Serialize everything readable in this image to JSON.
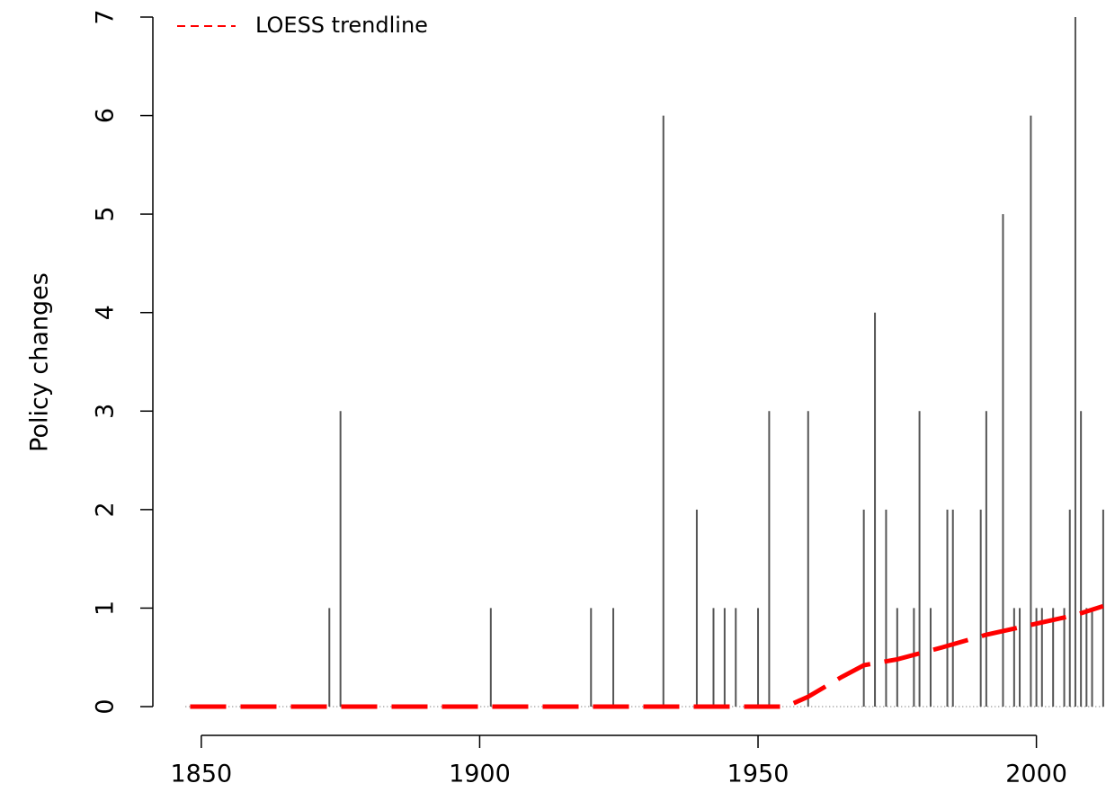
{
  "chart_data": {
    "type": "spike",
    "y_label": "Policy changes",
    "series": [
      {
        "name": "Policy changes",
        "color": "#555555",
        "x": [
          1873,
          1875,
          1902,
          1920,
          1924,
          1933,
          1939,
          1942,
          1944,
          1946,
          1950,
          1952,
          1959,
          1969,
          1971,
          1973,
          1975,
          1978,
          1979,
          1981,
          1984,
          1985,
          1990,
          1991,
          1994,
          1996,
          1997,
          1999,
          2000,
          2001,
          2003,
          2005,
          2006,
          2007,
          2008,
          2009,
          2010,
          2012
        ],
        "values": [
          1,
          3,
          1,
          1,
          1,
          6,
          2,
          1,
          1,
          1,
          1,
          3,
          3,
          2,
          4,
          2,
          1,
          1,
          3,
          1,
          2,
          2,
          2,
          3,
          5,
          1,
          1,
          6,
          1,
          1,
          1,
          1,
          2,
          7,
          3,
          1,
          1,
          2
        ]
      },
      {
        "name": "LOESS trendline",
        "color": "#ff0000",
        "dashed": true,
        "x": [
          1848,
          1955,
          1959,
          1965,
          1969,
          1975,
          1983,
          1991,
          1999,
          2007,
          2012
        ],
        "values": [
          0,
          0,
          0.1,
          0.3,
          0.42,
          0.48,
          0.6,
          0.73,
          0.83,
          0.93,
          1.02
        ]
      }
    ],
    "xlim": [
      1841.3,
      2012.5
    ],
    "xticks": [
      1850,
      1900,
      1950,
      2000
    ],
    "ylim": [
      0,
      7
    ],
    "yticks": [
      0,
      1,
      2,
      3,
      4,
      5,
      6,
      7
    ],
    "legend": "topleft"
  }
}
